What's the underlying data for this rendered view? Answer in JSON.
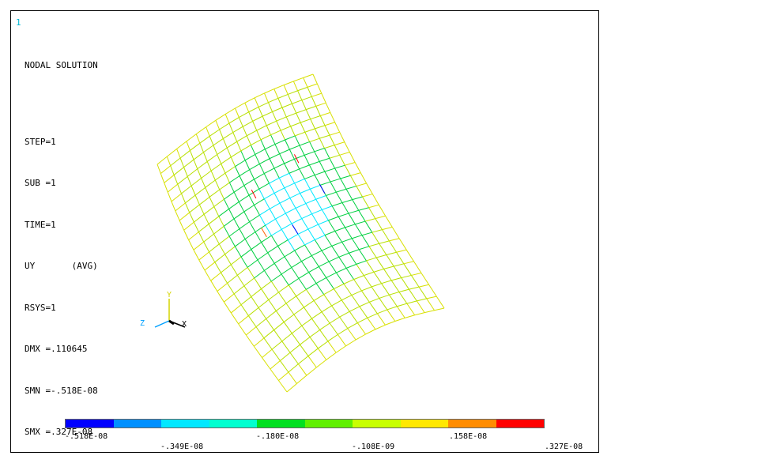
{
  "window_number": "1",
  "info_title": "NODAL SOLUTION",
  "info_lines": [
    "STEP=1",
    "SUB =1",
    "TIME=1",
    "UY       (AVG)",
    "RSYS=1",
    "DMX =.110645",
    "SMN =-.518E-08",
    "SMX =.327E-08"
  ],
  "axes": {
    "x": "X",
    "y": "Y",
    "z": "Z"
  },
  "legend": {
    "colors": [
      "#0000ff",
      "#0090ff",
      "#00e8ff",
      "#00ffd0",
      "#00e020",
      "#60f000",
      "#c8ff00",
      "#ffe800",
      "#ff8c00",
      "#ff0000"
    ],
    "top_labels": [
      "-.518E-08",
      "-.180E-08",
      ".158E-08"
    ],
    "bottom_labels": [
      "-.349E-08",
      "-.108E-09",
      ".327E-08"
    ]
  }
}
